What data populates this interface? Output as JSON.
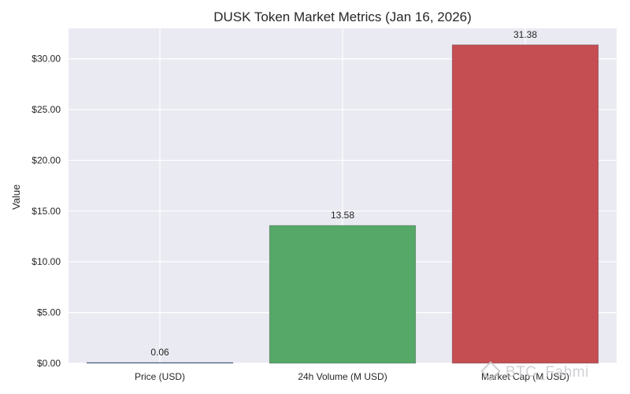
{
  "chart_data": {
    "type": "bar",
    "title": "DUSK Token Market Metrics (Jan 16, 2026)",
    "ylabel": "Value",
    "xlabel": "",
    "categories": [
      "Price (USD)",
      "24h Volume (M USD)",
      "Market Cap (M USD)"
    ],
    "values": [
      0.06,
      13.58,
      31.38
    ],
    "data_labels": [
      "0.06",
      "13.58",
      "31.38"
    ],
    "colors": [
      "#4c72b0",
      "#55a868",
      "#c44e52"
    ],
    "ylim": [
      0,
      33
    ],
    "yticks": [
      0,
      5,
      10,
      15,
      20,
      25,
      30
    ],
    "ytick_labels": [
      "$0.00",
      "$5.00",
      "$10.00",
      "$15.00",
      "$20.00",
      "$25.00",
      "$30.00"
    ],
    "grid": true,
    "background": "#eaeaf2"
  },
  "watermark": {
    "text": "BTC_Fahmi",
    "icon": "binance-square-logo"
  }
}
